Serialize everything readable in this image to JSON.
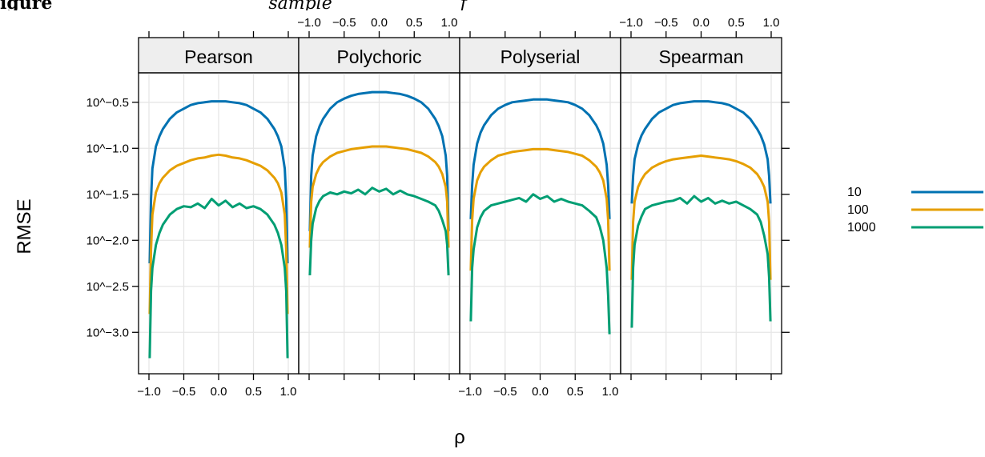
{
  "caption_fragment": {
    "bold": "igure",
    "middle": "sample",
    "right": "f"
  },
  "chart_data": {
    "type": "line",
    "panels": [
      "Pearson",
      "Polychoric",
      "Polyserial",
      "Spearman"
    ],
    "xlabel": "ρ",
    "ylabel": "RMSE",
    "x_ticks": [
      "−1.0",
      "−0.5",
      "0.0",
      "0.5",
      "1.0"
    ],
    "x_tick_values": [
      -1.0,
      -0.5,
      0.0,
      0.5,
      1.0
    ],
    "xlim": [
      -1.0,
      1.0
    ],
    "y_scale": "log10",
    "y_ticks": [
      "10^−0.5",
      "10^−1.0",
      "10^−1.5",
      "10^−2.0",
      "10^−2.5",
      "10^−3.0"
    ],
    "y_tick_values": [
      -0.5,
      -1.0,
      -1.5,
      -2.0,
      -2.5,
      -3.0
    ],
    "ylim_log10": [
      -3.45,
      -0.18
    ],
    "grid": true,
    "legend_position": "right",
    "x": [
      -0.99,
      -0.97,
      -0.95,
      -0.9,
      -0.85,
      -0.8,
      -0.7,
      -0.6,
      -0.5,
      -0.4,
      -0.3,
      -0.2,
      -0.1,
      0.0,
      0.1,
      0.2,
      0.3,
      0.4,
      0.5,
      0.6,
      0.7,
      0.8,
      0.85,
      0.9,
      0.95,
      0.97,
      0.99
    ],
    "series": [
      {
        "name": "10",
        "color": "#0072b2",
        "values": {
          "Pearson": [
            -2.25,
            -1.55,
            -1.22,
            -0.98,
            -0.87,
            -0.79,
            -0.68,
            -0.61,
            -0.57,
            -0.53,
            -0.51,
            -0.5,
            -0.49,
            -0.49,
            -0.49,
            -0.5,
            -0.51,
            -0.53,
            -0.57,
            -0.61,
            -0.68,
            -0.79,
            -0.87,
            -0.98,
            -1.22,
            -1.55,
            -2.25
          ],
          "Polychoric": [
            -1.9,
            -1.3,
            -1.08,
            -0.87,
            -0.76,
            -0.68,
            -0.57,
            -0.5,
            -0.46,
            -0.43,
            -0.41,
            -0.4,
            -0.39,
            -0.39,
            -0.39,
            -0.4,
            -0.41,
            -0.43,
            -0.46,
            -0.5,
            -0.57,
            -0.68,
            -0.76,
            -0.87,
            -1.08,
            -1.3,
            -1.9
          ],
          "Polyserial": [
            -1.77,
            -1.4,
            -1.18,
            -0.95,
            -0.83,
            -0.75,
            -0.64,
            -0.57,
            -0.53,
            -0.5,
            -0.49,
            -0.48,
            -0.47,
            -0.47,
            -0.47,
            -0.48,
            -0.49,
            -0.5,
            -0.53,
            -0.57,
            -0.64,
            -0.75,
            -0.83,
            -0.95,
            -1.18,
            -1.4,
            -1.77
          ],
          "Spearman": [
            -1.6,
            -1.3,
            -1.12,
            -0.96,
            -0.86,
            -0.79,
            -0.68,
            -0.61,
            -0.57,
            -0.53,
            -0.51,
            -0.5,
            -0.49,
            -0.49,
            -0.49,
            -0.5,
            -0.51,
            -0.53,
            -0.57,
            -0.61,
            -0.68,
            -0.79,
            -0.86,
            -0.96,
            -1.12,
            -1.3,
            -1.6
          ]
        }
      },
      {
        "name": "100",
        "color": "#e69f00",
        "values": {
          "Pearson": [
            -2.8,
            -2.1,
            -1.72,
            -1.48,
            -1.38,
            -1.32,
            -1.24,
            -1.19,
            -1.16,
            -1.13,
            -1.11,
            -1.1,
            -1.08,
            -1.07,
            -1.08,
            -1.1,
            -1.11,
            -1.13,
            -1.16,
            -1.19,
            -1.24,
            -1.32,
            -1.38,
            -1.48,
            -1.72,
            -2.1,
            -2.8
          ],
          "Polychoric": [
            -2.08,
            -1.58,
            -1.42,
            -1.28,
            -1.2,
            -1.15,
            -1.09,
            -1.05,
            -1.03,
            -1.01,
            -1.0,
            -0.99,
            -0.98,
            -0.98,
            -0.98,
            -0.99,
            -1.0,
            -1.01,
            -1.03,
            -1.05,
            -1.09,
            -1.15,
            -1.2,
            -1.28,
            -1.42,
            -1.58,
            -2.08
          ],
          "Polyserial": [
            -2.33,
            -1.78,
            -1.55,
            -1.35,
            -1.26,
            -1.2,
            -1.13,
            -1.08,
            -1.06,
            -1.04,
            -1.03,
            -1.02,
            -1.01,
            -1.01,
            -1.01,
            -1.02,
            -1.03,
            -1.04,
            -1.06,
            -1.08,
            -1.13,
            -1.2,
            -1.26,
            -1.35,
            -1.55,
            -1.78,
            -2.33
          ],
          "Spearman": [
            -2.43,
            -1.8,
            -1.58,
            -1.42,
            -1.34,
            -1.28,
            -1.21,
            -1.17,
            -1.14,
            -1.12,
            -1.11,
            -1.1,
            -1.09,
            -1.08,
            -1.09,
            -1.1,
            -1.11,
            -1.12,
            -1.14,
            -1.17,
            -1.21,
            -1.28,
            -1.34,
            -1.42,
            -1.58,
            -1.8,
            -2.43
          ]
        }
      },
      {
        "name": "1000",
        "color": "#009e73",
        "values": {
          "Pearson": [
            -3.28,
            -2.55,
            -2.3,
            -2.05,
            -1.92,
            -1.83,
            -1.72,
            -1.66,
            -1.63,
            -1.64,
            -1.6,
            -1.65,
            -1.55,
            -1.62,
            -1.57,
            -1.64,
            -1.6,
            -1.65,
            -1.63,
            -1.66,
            -1.72,
            -1.83,
            -1.92,
            -2.05,
            -2.3,
            -2.55,
            -3.28
          ],
          "Polychoric": [
            -2.38,
            -2.0,
            -1.82,
            -1.65,
            -1.57,
            -1.52,
            -1.48,
            -1.5,
            -1.47,
            -1.49,
            -1.45,
            -1.5,
            -1.43,
            -1.47,
            -1.44,
            -1.5,
            -1.46,
            -1.5,
            -1.52,
            -1.55,
            -1.58,
            -1.62,
            -1.68,
            -1.78,
            -1.9,
            -2.05,
            -2.38
          ],
          "Polyserial": [
            -2.88,
            -2.3,
            -2.1,
            -1.86,
            -1.75,
            -1.68,
            -1.62,
            -1.6,
            -1.58,
            -1.56,
            -1.54,
            -1.58,
            -1.5,
            -1.55,
            -1.52,
            -1.58,
            -1.55,
            -1.58,
            -1.6,
            -1.62,
            -1.68,
            -1.75,
            -1.85,
            -2.0,
            -2.3,
            -2.6,
            -3.02
          ],
          "Spearman": [
            -2.95,
            -2.3,
            -2.05,
            -1.84,
            -1.74,
            -1.66,
            -1.62,
            -1.6,
            -1.58,
            -1.57,
            -1.54,
            -1.6,
            -1.52,
            -1.58,
            -1.54,
            -1.6,
            -1.57,
            -1.6,
            -1.58,
            -1.62,
            -1.66,
            -1.72,
            -1.8,
            -1.95,
            -2.15,
            -2.4,
            -2.88
          ]
        }
      }
    ]
  }
}
